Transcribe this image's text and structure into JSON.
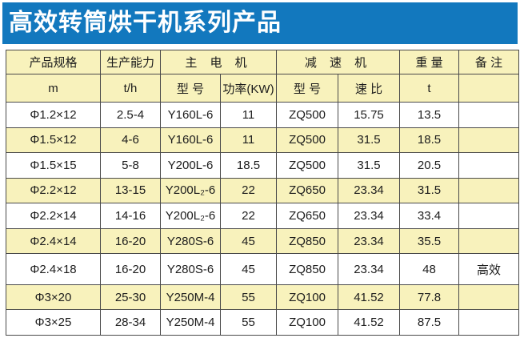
{
  "banner": {
    "title": "高效转筒烘干机系列产品",
    "bg_color": "#1278BE",
    "text_color": "#FFFFFF"
  },
  "table": {
    "stripe_color": "#F8F2BC",
    "border_color": "#4A4A4A",
    "header_row1": [
      "产品规格",
      "生产能力",
      "主 电 机",
      "减 速 机",
      "重 量",
      "备 注"
    ],
    "header_row2": [
      "m",
      "t/h",
      "型 号",
      "功率(KW)",
      "型 号",
      "速 比",
      "t",
      ""
    ],
    "rows": [
      [
        "Φ1.2×12",
        "2.5-4",
        "Y160L-6",
        "11",
        "ZQ500",
        "15.75",
        "13.5",
        ""
      ],
      [
        "Φ1.5×12",
        "4-6",
        "Y160L-6",
        "11",
        "ZQ500",
        "31.5",
        "18.5",
        ""
      ],
      [
        "Φ1.5×15",
        "5-8",
        "Y200L-6",
        "18.5",
        "ZQ500",
        "31.5",
        "20.5",
        ""
      ],
      [
        "Φ2.2×12",
        "13-15",
        "Y200L₂-6",
        "22",
        "ZQ650",
        "23.34",
        "31.5",
        ""
      ],
      [
        "Φ2.2×14",
        "14-16",
        "Y200L₂-6",
        "22",
        "ZQ650",
        "23.34",
        "33.4",
        ""
      ],
      [
        "Φ2.4×14",
        "16-20",
        "Y280S-6",
        "45",
        "ZQ850",
        "23.34",
        "35.5",
        ""
      ],
      [
        "Φ2.4×18",
        "16-20",
        "Y280S-6",
        "45",
        "ZQ850",
        "23.34",
        "48",
        "高效"
      ],
      [
        "Φ3×20",
        "25-30",
        "Y250M-4",
        "55",
        "ZQ100",
        "41.52",
        "77.8",
        ""
      ],
      [
        "Φ3×25",
        "28-34",
        "Y250M-4",
        "55",
        "ZQ100",
        "41.52",
        "87.5",
        ""
      ]
    ]
  }
}
